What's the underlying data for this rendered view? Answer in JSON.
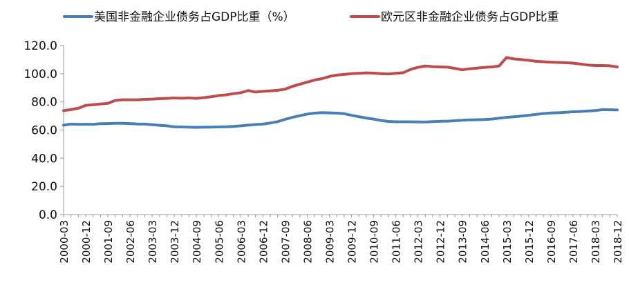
{
  "chart_data": {
    "type": "line",
    "title": "",
    "xlabel": "",
    "ylabel": "",
    "ylim": [
      0,
      120
    ],
    "yticks": [
      "0.0",
      "20.0",
      "40.0",
      "60.0",
      "80.0",
      "100.0",
      "120.0"
    ],
    "x_tick_labels": [
      "2000-03",
      "2000-12",
      "2001-09",
      "2002-06",
      "2003-03",
      "2003-12",
      "2004-09",
      "2005-06",
      "2006-03",
      "2006-12",
      "2007-09",
      "2008-06",
      "2009-03",
      "2009-12",
      "2010-09",
      "2011-06",
      "2012-03",
      "2012-12",
      "2013-09",
      "2014-06",
      "2015-03",
      "2015-12",
      "2016-09",
      "2017-06",
      "2018-03",
      "2018-12"
    ],
    "grid": false,
    "legend_position": "top",
    "x": [
      "2000-03",
      "2000-06",
      "2000-09",
      "2000-12",
      "2001-03",
      "2001-06",
      "2001-09",
      "2001-12",
      "2002-03",
      "2002-06",
      "2002-09",
      "2002-12",
      "2003-03",
      "2003-06",
      "2003-09",
      "2003-12",
      "2004-03",
      "2004-06",
      "2004-09",
      "2004-12",
      "2005-03",
      "2005-06",
      "2005-09",
      "2005-12",
      "2006-03",
      "2006-06",
      "2006-09",
      "2006-12",
      "2007-03",
      "2007-06",
      "2007-09",
      "2007-12",
      "2008-03",
      "2008-06",
      "2008-09",
      "2008-12",
      "2009-03",
      "2009-06",
      "2009-09",
      "2009-12",
      "2010-03",
      "2010-06",
      "2010-09",
      "2010-12",
      "2011-03",
      "2011-06",
      "2011-09",
      "2011-12",
      "2012-03",
      "2012-06",
      "2012-09",
      "2012-12",
      "2013-03",
      "2013-06",
      "2013-09",
      "2013-12",
      "2014-03",
      "2014-06",
      "2014-09",
      "2014-12",
      "2015-03",
      "2015-06",
      "2015-09",
      "2015-12",
      "2016-03",
      "2016-06",
      "2016-09",
      "2016-12",
      "2017-03",
      "2017-06",
      "2017-09",
      "2017-12",
      "2018-03",
      "2018-06",
      "2018-09",
      "2018-12"
    ],
    "series": [
      {
        "name": "美国非金融企业债务占GDP比重（%）",
        "color": "#4a7fb5",
        "values": [
          63.5,
          64.2,
          64.0,
          64.1,
          64.0,
          64.5,
          64.6,
          64.8,
          64.8,
          64.6,
          64.3,
          64.2,
          63.8,
          63.4,
          63.0,
          62.3,
          62.2,
          62.0,
          61.9,
          62.0,
          62.1,
          62.2,
          62.3,
          62.6,
          63.0,
          63.5,
          63.9,
          64.2,
          65.0,
          66.0,
          67.6,
          69.0,
          70.2,
          71.3,
          72.0,
          72.4,
          72.2,
          72.0,
          71.6,
          70.5,
          69.5,
          68.5,
          67.8,
          66.8,
          66.1,
          65.9,
          65.9,
          65.9,
          65.8,
          65.7,
          66.0,
          66.2,
          66.3,
          66.6,
          67.0,
          67.2,
          67.3,
          67.5,
          67.8,
          68.4,
          69.0,
          69.4,
          69.9,
          70.5,
          71.1,
          71.7,
          72.1,
          72.3,
          72.6,
          73.0,
          73.2,
          73.5,
          73.8,
          74.5,
          74.4,
          74.3
        ]
      },
      {
        "name": "欧元区非金融企业债务占GDP比重",
        "color": "#bf4b4b",
        "values": [
          73.8,
          74.5,
          75.5,
          77.5,
          78.0,
          78.5,
          79.0,
          81.0,
          81.5,
          81.5,
          81.5,
          81.8,
          82.0,
          82.3,
          82.5,
          82.8,
          82.6,
          82.8,
          82.5,
          83.0,
          83.6,
          84.5,
          85.0,
          85.8,
          86.5,
          88.0,
          87.0,
          87.5,
          87.8,
          88.2,
          89.0,
          91.0,
          92.5,
          94.0,
          95.5,
          96.5,
          98.0,
          99.0,
          99.5,
          100.0,
          100.3,
          100.6,
          100.4,
          100.0,
          99.8,
          100.3,
          100.7,
          103.0,
          104.5,
          105.5,
          105.0,
          104.8,
          104.6,
          103.8,
          102.8,
          103.5,
          104.0,
          104.5,
          104.8,
          105.5,
          111.5,
          110.5,
          110.0,
          109.5,
          108.8,
          108.5,
          108.2,
          108.0,
          107.8,
          107.5,
          106.8,
          106.2,
          105.8,
          105.8,
          105.6,
          104.8
        ]
      }
    ]
  }
}
